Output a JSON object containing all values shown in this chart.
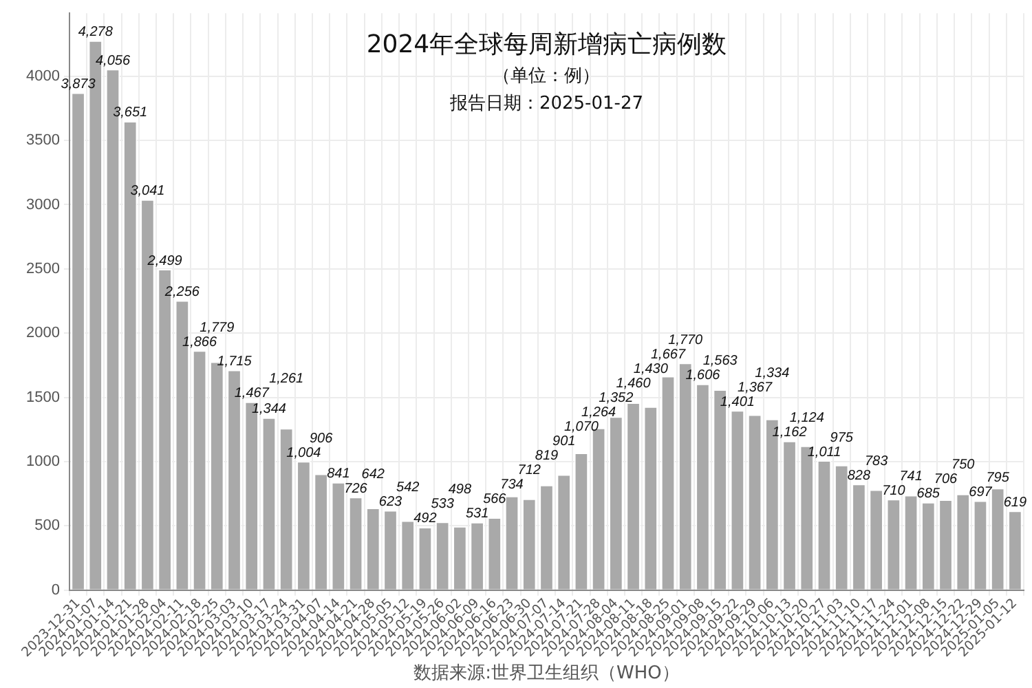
{
  "chart_data": {
    "type": "bar",
    "title": "2024年全球每周新增病亡病例数",
    "subtitle": "（单位：例）",
    "annotations": [
      "报告日期：2025-01-27",
      "数据来源:世界卫生组织（WHO）"
    ],
    "categories": [
      "2023-12-31",
      "2024-01-07",
      "2024-01-14",
      "2024-01-21",
      "2024-01-28",
      "2024-02-04",
      "2024-02-11",
      "2024-02-18",
      "2024-02-25",
      "2024-03-03",
      "2024-03-10",
      "2024-03-17",
      "2024-03-24",
      "2024-03-31",
      "2024-04-07",
      "2024-04-14",
      "2024-04-21",
      "2024-04-28",
      "2024-05-05",
      "2024-05-12",
      "2024-05-19",
      "2024-05-26",
      "2024-06-02",
      "2024-06-09",
      "2024-06-16",
      "2024-06-23",
      "2024-06-30",
      "2024-07-07",
      "2024-07-14",
      "2024-07-21",
      "2024-07-28",
      "2024-08-04",
      "2024-08-11",
      "2024-08-18",
      "2024-08-25",
      "2024-09-01",
      "2024-09-08",
      "2024-09-15",
      "2024-09-22",
      "2024-09-29",
      "2024-10-06",
      "2024-10-13",
      "2024-10-20",
      "2024-10-27",
      "2024-11-03",
      "2024-11-10",
      "2024-11-17",
      "2024-11-24",
      "2024-12-01",
      "2024-12-08",
      "2024-12-15",
      "2024-12-22",
      "2024-12-29",
      "2025-01-05",
      "2025-01-12"
    ],
    "values": [
      3873,
      4278,
      4056,
      3651,
      3041,
      2499,
      2256,
      1866,
      1779,
      1715,
      1467,
      1344,
      1261,
      1004,
      906,
      841,
      726,
      642,
      623,
      542,
      492,
      533,
      498,
      531,
      566,
      734,
      712,
      819,
      901,
      1070,
      1264,
      1352,
      1460,
      1430,
      1667,
      1770,
      1606,
      1563,
      1401,
      1367,
      1334,
      1162,
      1124,
      1011,
      975,
      828,
      783,
      710,
      741,
      685,
      706,
      750,
      697,
      795,
      619
    ],
    "value_labels": [
      "3,873",
      "4,278",
      "4,056",
      "3,651",
      "3,041",
      "2,499",
      "2,256",
      "1,866",
      "1,779",
      "1,715",
      "1,467",
      "1,344",
      "1,261",
      "1,004",
      "906",
      "841",
      "726",
      "642",
      "623",
      "542",
      "492",
      "533",
      "498",
      "531",
      "566",
      "734",
      "712",
      "819",
      "901",
      "1,070",
      "1,264",
      "1,352",
      "1,460",
      "1,430",
      "1,667",
      "1,770",
      "1,606",
      "1,563",
      "1,401",
      "1,367",
      "1,334",
      "1,162",
      "1,124",
      "1,011",
      "975",
      "828",
      "783",
      "710",
      "741",
      "685",
      "706",
      "750",
      "697",
      "795",
      "619"
    ],
    "color": "#a9a9a9",
    "ylim": [
      0,
      4490
    ],
    "yticks": [
      0,
      500,
      1000,
      1500,
      2000,
      2500,
      3000,
      3500,
      4000
    ],
    "grid": true,
    "legend": false
  }
}
